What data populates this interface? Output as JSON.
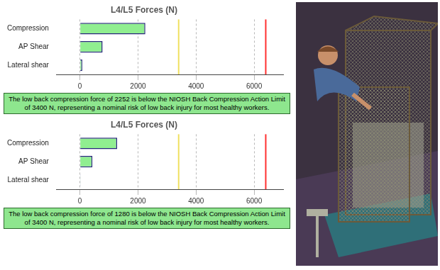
{
  "chart_data": [
    {
      "type": "bar",
      "orientation": "horizontal",
      "title": "L4/L5 Forces (N)",
      "categories": [
        "Compression",
        "AP Shear",
        "Lateral shear"
      ],
      "values": [
        2252,
        780,
        80
      ],
      "color": "#90ee90",
      "xlim": [
        -800,
        7000
      ],
      "xticks": [
        0,
        2000,
        4000,
        6000
      ],
      "grid": true,
      "reference_lines": [
        {
          "value": 3400,
          "color": "#f0e060"
        },
        {
          "value": 6400,
          "color": "#ff3030"
        }
      ],
      "annotation": "The low back compression force of 2252 is below the NIOSH Back Compression Action Limit of 3400 N, representing a nominal risk of low back injury for most healthy workers."
    },
    {
      "type": "bar",
      "orientation": "horizontal",
      "title": "L4/L5 Forces (N)",
      "categories": [
        "Compression",
        "AP Shear",
        "Lateral shear"
      ],
      "values": [
        1280,
        430,
        20
      ],
      "color": "#90ee90",
      "xlim": [
        -800,
        7000
      ],
      "xticks": [
        0,
        2000,
        4000,
        6000
      ],
      "grid": true,
      "reference_lines": [
        {
          "value": 3400,
          "color": "#f0e060"
        },
        {
          "value": 6400,
          "color": "#ff3030"
        }
      ],
      "annotation": "The low back compression force of 1280 is below the NIOSH Back Compression Action Limit of 3400 N, representing a nominal risk of low back injury for most healthy workers."
    }
  ]
}
